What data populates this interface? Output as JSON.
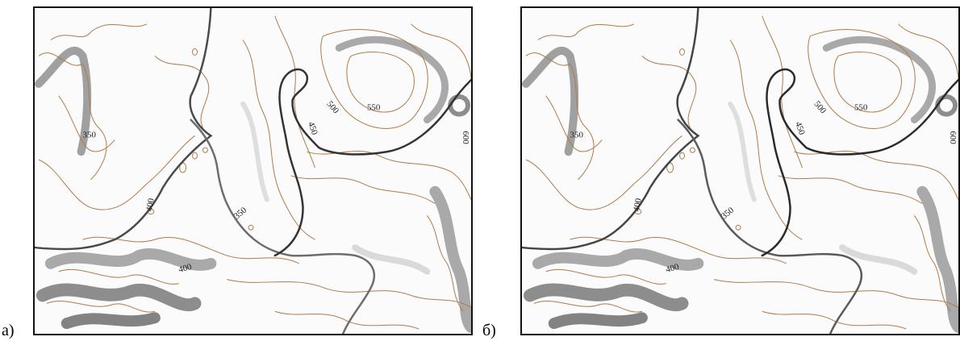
{
  "panels": [
    {
      "label": "а)",
      "contour_labels": [
        "350",
        "400",
        "350",
        "450",
        "500",
        "550",
        "400",
        "600"
      ]
    },
    {
      "label": "б)",
      "contour_labels": [
        "350",
        "400",
        "350",
        "450",
        "500",
        "550",
        "400",
        "600"
      ]
    }
  ],
  "colors": {
    "contour": "#b07a46",
    "boundary_a": "#6d6d6d",
    "boundary_b": "#444444",
    "relief_shadow": "#3a3a3a"
  }
}
